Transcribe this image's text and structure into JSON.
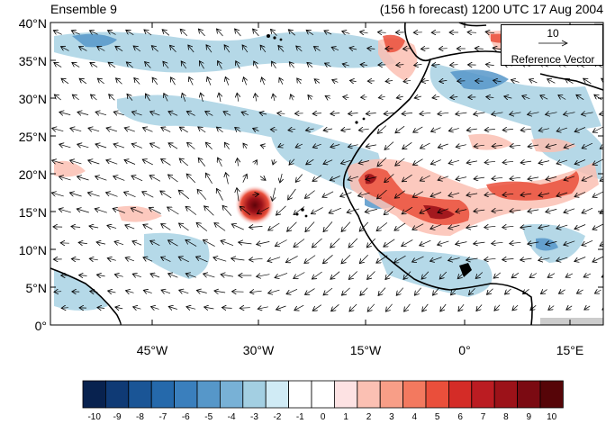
{
  "header": {
    "ensemble": "Ensemble 9",
    "forecast": "(156 h forecast) 1200 UTC 17 Aug 2004"
  },
  "map": {
    "y_ticks": [
      "40°N",
      "35°N",
      "30°N",
      "25°N",
      "20°N",
      "15°N",
      "10°N",
      "5°N",
      "0°"
    ],
    "x_ticks": [
      "45°W",
      "30°W",
      "15°W",
      "0°",
      "15°E"
    ],
    "lat_range": [
      0,
      40
    ],
    "lon_range": [
      -57,
      19
    ]
  },
  "reference_vector": {
    "magnitude": "10",
    "label": "Reference Vector"
  },
  "colorbar": {
    "labels": [
      "-10",
      "-9",
      "-8",
      "-7",
      "-6",
      "-5",
      "-4",
      "-3",
      "-2",
      "-1",
      "0",
      "1",
      "2",
      "3",
      "4",
      "5",
      "6",
      "7",
      "8",
      "9",
      "10"
    ],
    "colors": [
      "#08224f",
      "#0f3a75",
      "#1a5596",
      "#2569ab",
      "#3a7fbd",
      "#5697c9",
      "#78b1d6",
      "#a3cfe2",
      "#d0ebf5",
      "#ffffff",
      "#ffffff",
      "#fde2e3",
      "#fbc0b3",
      "#f89e87",
      "#f3795f",
      "#ea4f3b",
      "#d42c27",
      "#bb1c22",
      "#9c1219",
      "#7b0a12",
      "#560508"
    ]
  }
}
